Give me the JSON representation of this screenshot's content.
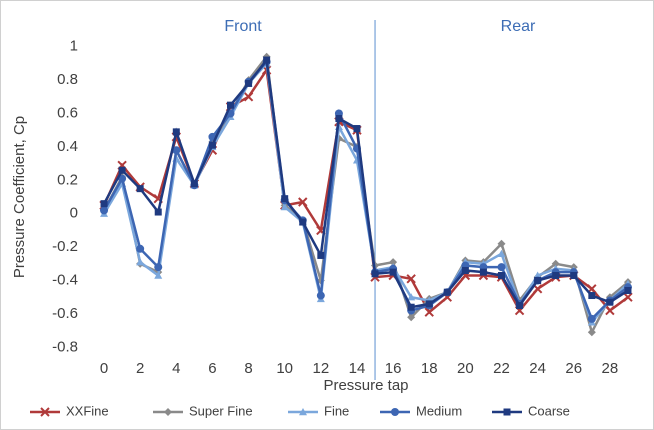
{
  "chart_data": {
    "type": "line",
    "xlabel": "Pressure tap",
    "ylabel": "Pressure Coefficient, Cp",
    "annotations": [
      "Front",
      "Rear"
    ],
    "divider_x": 15,
    "x": [
      0,
      1,
      2,
      3,
      4,
      5,
      6,
      7,
      8,
      9,
      10,
      11,
      12,
      13,
      14,
      15,
      16,
      17,
      18,
      19,
      20,
      21,
      22,
      23,
      24,
      25,
      26,
      27,
      28,
      29
    ],
    "xlim": [
      -0.5,
      29.5
    ],
    "xticks": [
      0,
      2,
      4,
      6,
      8,
      10,
      12,
      14,
      16,
      18,
      20,
      22,
      24,
      26,
      28
    ],
    "ylim": [
      -0.9,
      1.1
    ],
    "yticks": [
      -0.8,
      -0.6,
      -0.4,
      -0.2,
      0,
      0.2,
      0.4,
      0.6,
      0.8,
      1
    ],
    "legend": "bottom",
    "series": [
      {
        "name": "XXFine",
        "color": "#b03a3a",
        "marker": "x",
        "values": [
          0.05,
          0.29,
          0.16,
          0.09,
          0.46,
          0.18,
          0.38,
          0.64,
          0.7,
          0.86,
          0.05,
          0.07,
          -0.1,
          0.55,
          0.5,
          -0.38,
          -0.37,
          -0.39,
          -0.59,
          -0.5,
          -0.37,
          -0.37,
          -0.38,
          -0.58,
          -0.45,
          -0.38,
          -0.37,
          -0.45,
          -0.58,
          -0.5
        ]
      },
      {
        "name": "Super Fine",
        "color": "#8a8a8a",
        "marker": "diamond",
        "values": [
          0.02,
          0.22,
          -0.3,
          -0.35,
          0.38,
          0.17,
          0.43,
          0.6,
          0.8,
          0.94,
          0.05,
          -0.04,
          -0.4,
          0.45,
          0.4,
          -0.31,
          -0.29,
          -0.62,
          -0.51,
          -0.47,
          -0.28,
          -0.29,
          -0.18,
          -0.52,
          -0.38,
          -0.3,
          -0.32,
          -0.71,
          -0.5,
          -0.41
        ]
      },
      {
        "name": "Fine",
        "color": "#7ba7dc",
        "marker": "triangle",
        "values": [
          0.0,
          0.18,
          -0.29,
          -0.37,
          0.33,
          0.17,
          0.4,
          0.58,
          0.78,
          0.9,
          0.04,
          -0.05,
          -0.51,
          0.52,
          0.32,
          -0.34,
          -0.32,
          -0.5,
          -0.52,
          -0.47,
          -0.29,
          -0.3,
          -0.24,
          -0.54,
          -0.37,
          -0.33,
          -0.34,
          -0.65,
          -0.52,
          -0.42
        ]
      },
      {
        "name": "Medium",
        "color": "#3d66b3",
        "marker": "circle",
        "values": [
          0.02,
          0.21,
          -0.21,
          -0.32,
          0.38,
          0.17,
          0.46,
          0.6,
          0.79,
          0.91,
          0.08,
          -0.04,
          -0.49,
          0.6,
          0.39,
          -0.35,
          -0.33,
          -0.58,
          -0.55,
          -0.47,
          -0.31,
          -0.32,
          -0.32,
          -0.54,
          -0.4,
          -0.35,
          -0.35,
          -0.63,
          -0.52,
          -0.44
        ]
      },
      {
        "name": "Coarse",
        "color": "#1f3a80",
        "marker": "square",
        "values": [
          0.06,
          0.26,
          0.15,
          0.01,
          0.49,
          0.18,
          0.41,
          0.65,
          0.78,
          0.92,
          0.09,
          -0.05,
          -0.25,
          0.57,
          0.51,
          -0.36,
          -0.35,
          -0.56,
          -0.54,
          -0.47,
          -0.34,
          -0.35,
          -0.37,
          -0.55,
          -0.4,
          -0.37,
          -0.37,
          -0.49,
          -0.53,
          -0.46
        ]
      }
    ]
  }
}
